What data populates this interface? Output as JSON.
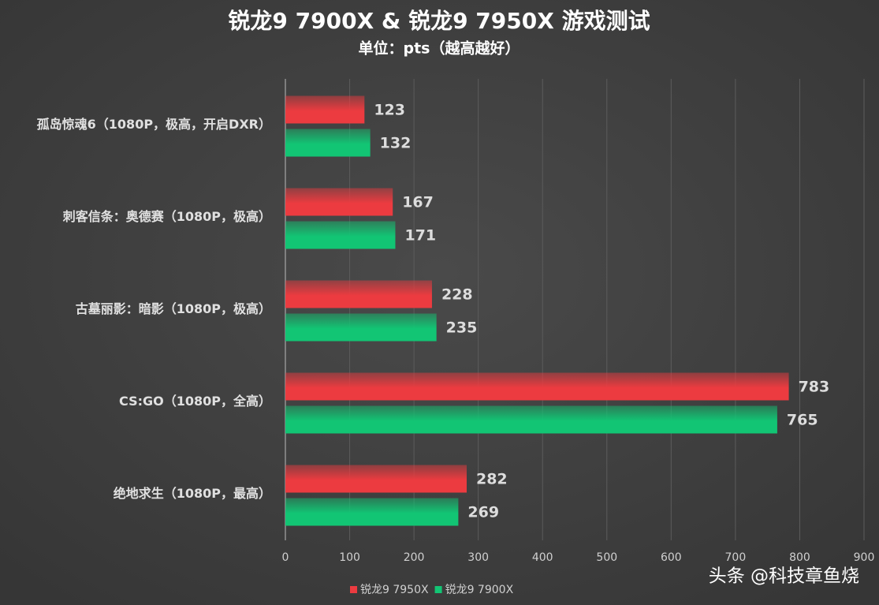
{
  "chart_data": {
    "type": "hbar",
    "title": "锐龙9 7900X & 锐龙9 7950X 游戏测试",
    "subtitle": "单位：pts（越高越好）",
    "categories": [
      "孤岛惊魂6（1080P，极高，开启DXR）",
      "刺客信条：奥德赛（1080P，极高）",
      "古墓丽影：暗影（1080P，极高）",
      "CS:GO（1080P，全高）",
      "绝地求生（1080P，最高）"
    ],
    "series": [
      {
        "name": "锐龙9 7950X",
        "color": "#ec3b40",
        "values": [
          123,
          167,
          228,
          783,
          282
        ]
      },
      {
        "name": "锐龙9 7900X",
        "color": "#12c574",
        "values": [
          132,
          171,
          235,
          765,
          269
        ]
      }
    ],
    "xlim": [
      0,
      900
    ],
    "xticks": [
      0,
      100,
      200,
      300,
      400,
      500,
      600,
      700,
      800,
      900
    ],
    "grid": true,
    "legend": "bottom",
    "watermark": "头条 @科技章鱼烧"
  }
}
